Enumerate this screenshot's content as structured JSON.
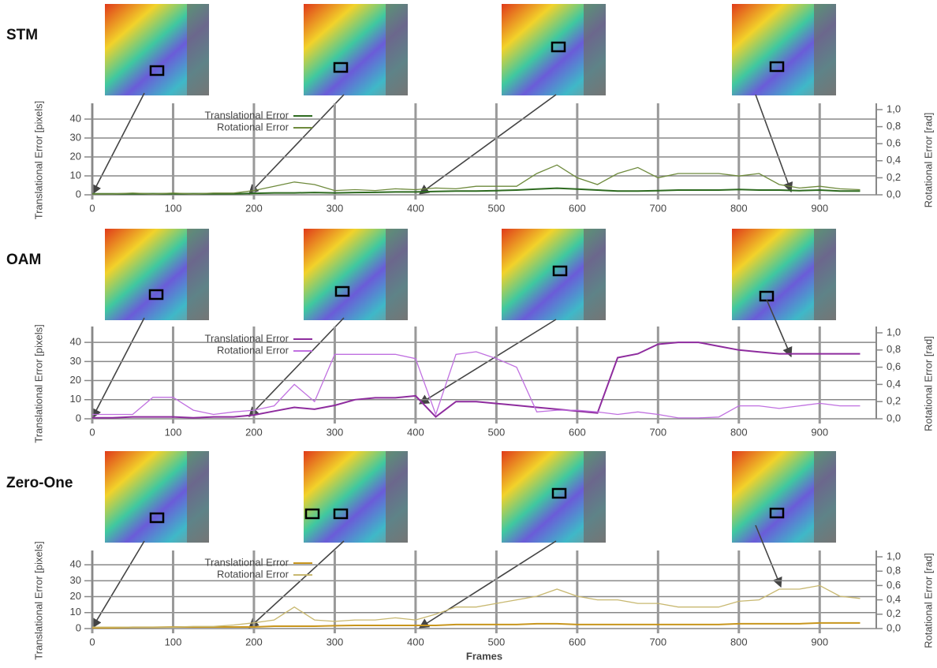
{
  "chart_data": [
    {
      "type": "line",
      "title": "STM",
      "ylabel": "Translational Error [pixels]",
      "y2label": "Rotational Error [rad]",
      "x": [
        0,
        25,
        50,
        75,
        100,
        125,
        150,
        175,
        200,
        225,
        250,
        275,
        300,
        325,
        350,
        375,
        400,
        425,
        450,
        475,
        500,
        525,
        550,
        575,
        600,
        625,
        650,
        675,
        700,
        725,
        750,
        775,
        800,
        825,
        850,
        875,
        900,
        925,
        950
      ],
      "xlim": [
        0,
        970
      ],
      "xticks": [
        0,
        100,
        200,
        300,
        400,
        500,
        600,
        700,
        800,
        900
      ],
      "ylim": [
        0,
        45
      ],
      "yticks": [
        0,
        10,
        20,
        30,
        40
      ],
      "y2lim": [
        0,
        1.0
      ],
      "y2ticks": [
        {
          "value": 0.0,
          "label": "0,0"
        },
        {
          "value": 0.2,
          "label": "0,2"
        },
        {
          "value": 0.4,
          "label": "0,4"
        },
        {
          "value": 0.6,
          "label": "0,6"
        },
        {
          "value": 0.8,
          "label": "0,8"
        },
        {
          "value": 1.0,
          "label": "1,0"
        }
      ],
      "grid": true,
      "series": [
        {
          "name": "Translational Error",
          "color": "#2d6a1f",
          "values": [
            0.5,
            0.5,
            0.5,
            0.6,
            0.5,
            0.6,
            0.5,
            0.5,
            0.8,
            1,
            1,
            1.2,
            1,
            1.2,
            1.3,
            1.5,
            1.5,
            1.8,
            2,
            2,
            2.2,
            2.5,
            3,
            3.5,
            3,
            2.5,
            2,
            2,
            2.2,
            2.5,
            2.5,
            2.5,
            2.8,
            2.5,
            2.5,
            2.2,
            2.5,
            2,
            2
          ]
        },
        {
          "name": "Rotational Error",
          "color": "#6e8a3c",
          "axis": "y2",
          "values": [
            0.01,
            0.01,
            0.02,
            0.01,
            0.02,
            0.01,
            0.02,
            0.02,
            0.05,
            0.1,
            0.15,
            0.12,
            0.05,
            0.06,
            0.05,
            0.07,
            0.06,
            0.08,
            0.07,
            0.1,
            0.1,
            0.1,
            0.25,
            0.35,
            0.2,
            0.12,
            0.25,
            0.32,
            0.2,
            0.25,
            0.25,
            0.25,
            0.22,
            0.25,
            0.12,
            0.08,
            0.1,
            0.07,
            0.06
          ]
        }
      ]
    },
    {
      "type": "line",
      "title": "OAM",
      "ylabel": "Translational Error [pixels]",
      "y2label": "Rotational Error [rad]",
      "x": [
        0,
        25,
        50,
        75,
        100,
        125,
        150,
        175,
        200,
        225,
        250,
        275,
        300,
        325,
        350,
        375,
        400,
        425,
        450,
        475,
        500,
        525,
        550,
        575,
        600,
        625,
        650,
        675,
        700,
        725,
        750,
        775,
        800,
        825,
        850,
        875,
        900,
        925,
        950
      ],
      "xlim": [
        0,
        970
      ],
      "xticks": [
        0,
        100,
        200,
        300,
        400,
        500,
        600,
        700,
        800,
        900
      ],
      "ylim": [
        0,
        45
      ],
      "yticks": [
        0,
        10,
        20,
        30,
        40
      ],
      "y2lim": [
        0,
        1.0
      ],
      "y2ticks": [
        {
          "value": 0.0,
          "label": "0,0"
        },
        {
          "value": 0.2,
          "label": "0,2"
        },
        {
          "value": 0.4,
          "label": "0,4"
        },
        {
          "value": 0.6,
          "label": "0,6"
        },
        {
          "value": 0.8,
          "label": "0,8"
        },
        {
          "value": 1.0,
          "label": "1,0"
        }
      ],
      "grid": true,
      "series": [
        {
          "name": "Translational Error",
          "color": "#8e2c9e",
          "values": [
            0.5,
            0.5,
            1,
            1,
            1,
            0.5,
            1,
            1,
            2,
            4,
            6,
            5,
            7,
            10,
            11,
            11,
            12,
            1,
            9,
            9,
            8,
            7,
            6,
            5,
            4,
            3,
            32,
            34,
            39,
            40,
            40,
            38,
            36,
            35,
            34,
            34,
            34,
            34,
            34
          ]
        },
        {
          "name": "Rotational Error",
          "color": "#c070e0",
          "axis": "y2",
          "values": [
            0.05,
            0.05,
            0.05,
            0.25,
            0.25,
            0.1,
            0.05,
            0.08,
            0.1,
            0.15,
            0.4,
            0.2,
            0.75,
            0.75,
            0.75,
            0.75,
            0.7,
            0.05,
            0.75,
            0.78,
            0.7,
            0.6,
            0.08,
            0.1,
            0.1,
            0.08,
            0.05,
            0.08,
            0.05,
            0.01,
            0.01,
            0.02,
            0.15,
            0.15,
            0.12,
            0.15,
            0.18,
            0.15,
            0.15
          ]
        }
      ]
    },
    {
      "type": "line",
      "title": "Zero-One",
      "xlabel": "Frames",
      "ylabel": "Translational Error [pixels]",
      "y2label": "Rotational Error [rad]",
      "x": [
        0,
        25,
        50,
        75,
        100,
        125,
        150,
        175,
        200,
        225,
        250,
        275,
        300,
        325,
        350,
        375,
        400,
        425,
        450,
        475,
        500,
        525,
        550,
        575,
        600,
        625,
        650,
        675,
        700,
        725,
        750,
        775,
        800,
        825,
        850,
        875,
        900,
        925,
        950
      ],
      "xlim": [
        0,
        970
      ],
      "xticks": [
        0,
        100,
        200,
        300,
        400,
        500,
        600,
        700,
        800,
        900
      ],
      "ylim": [
        0,
        45
      ],
      "yticks": [
        0,
        10,
        20,
        30,
        40
      ],
      "y2lim": [
        0,
        1.0
      ],
      "y2ticks": [
        {
          "value": 0.0,
          "label": "0,0"
        },
        {
          "value": 0.2,
          "label": "0,2"
        },
        {
          "value": 0.4,
          "label": "0,4"
        },
        {
          "value": 0.6,
          "label": "0,6"
        },
        {
          "value": 0.8,
          "label": "0,8"
        },
        {
          "value": 1.0,
          "label": "1,0"
        }
      ],
      "grid": true,
      "series": [
        {
          "name": "Translational Error",
          "color": "#c8961e",
          "values": [
            0.5,
            0.5,
            0.8,
            0.8,
            1,
            1,
            1,
            1,
            1,
            1.5,
            1.5,
            1.5,
            1.8,
            2,
            2,
            2,
            2,
            2,
            2.5,
            2.5,
            2.5,
            2.5,
            3,
            3,
            2.5,
            2.5,
            2.5,
            2.5,
            2.5,
            2.5,
            2.5,
            2.5,
            3,
            3,
            3,
            3,
            3.5,
            3.5,
            3.5
          ]
        },
        {
          "name": "Rotational Error",
          "color": "#c8b870",
          "axis": "y2",
          "values": [
            0.02,
            0.02,
            0.02,
            0.02,
            0.02,
            0.03,
            0.03,
            0.05,
            0.08,
            0.12,
            0.3,
            0.12,
            0.1,
            0.12,
            0.12,
            0.15,
            0.12,
            0.2,
            0.3,
            0.3,
            0.35,
            0.4,
            0.45,
            0.55,
            0.45,
            0.4,
            0.4,
            0.35,
            0.35,
            0.3,
            0.3,
            0.3,
            0.38,
            0.4,
            0.55,
            0.55,
            0.6,
            0.45,
            0.42
          ]
        }
      ]
    }
  ]
}
